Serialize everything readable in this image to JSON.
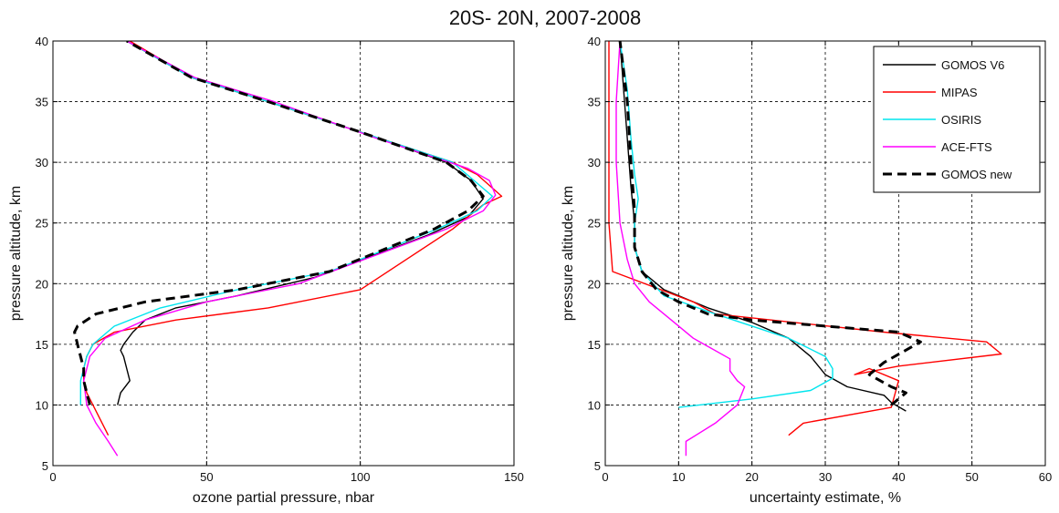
{
  "figure_title": "20S- 20N, 2007-2008",
  "colors": {
    "gomos_v6": "#000000",
    "mipas": "#ff0000",
    "osiris": "#00e5ee",
    "ace_fts": "#ff00ff",
    "gomos_new": "#000000"
  },
  "chart_data": [
    {
      "type": "line",
      "xlabel": "ozone partial pressure, nbar",
      "ylabel": "pressure altitude, km",
      "xlim": [
        0,
        150
      ],
      "ylim": [
        5,
        40
      ],
      "xticks": [
        0,
        50,
        100,
        150
      ],
      "yticks": [
        5,
        10,
        15,
        20,
        25,
        30,
        35,
        40
      ],
      "grid": true,
      "series": [
        {
          "name": "GOMOS V6",
          "color": "#000000",
          "dash": "solid",
          "width": 1.4,
          "x": [
            21,
            22,
            25,
            24,
            23,
            22,
            23,
            26,
            30,
            40,
            60,
            85,
            122,
            135,
            140,
            136,
            128,
            100,
            70,
            45,
            24
          ],
          "y": [
            10,
            11,
            12,
            13,
            14,
            14.5,
            15,
            16,
            17,
            18,
            19,
            20.5,
            24,
            25.5,
            27,
            28.5,
            30,
            32.5,
            35,
            37,
            40
          ]
        },
        {
          "name": "MIPAS",
          "color": "#ff0000",
          "dash": "solid",
          "width": 1.4,
          "x": [
            18,
            16,
            13,
            11,
            10,
            10,
            11,
            13,
            20,
            40,
            70,
            100,
            130,
            140,
            146,
            138,
            130,
            100,
            70,
            45,
            25
          ],
          "y": [
            7.5,
            8.5,
            10,
            11,
            12,
            13,
            14,
            15,
            16,
            17,
            18,
            19.5,
            24.5,
            26.5,
            27.2,
            29,
            30,
            32.5,
            35,
            37,
            40
          ]
        },
        {
          "name": "OSIRIS",
          "color": "#00e5ee",
          "dash": "solid",
          "width": 1.4,
          "x": [
            9,
            9,
            9,
            10,
            11,
            13,
            20,
            35,
            60,
            90,
            125,
            138,
            143,
            137,
            130,
            100,
            70,
            45,
            24
          ],
          "y": [
            10,
            11,
            12,
            13,
            14,
            15,
            16.5,
            18,
            19.5,
            21,
            24.5,
            26,
            27.2,
            28.5,
            30,
            32.5,
            35,
            37,
            40
          ]
        },
        {
          "name": "ACE-FTS",
          "color": "#ff00ff",
          "dash": "solid",
          "width": 1.4,
          "x": [
            21,
            18,
            14,
            11,
            10,
            12,
            17,
            30,
            50,
            80,
            128,
            140,
            144,
            142,
            135,
            105,
            72,
            46,
            24
          ],
          "y": [
            5.8,
            7,
            8.5,
            10,
            12,
            14,
            15.5,
            17,
            18.5,
            20,
            24.5,
            26,
            27.3,
            28.5,
            29.5,
            32,
            35,
            37,
            40
          ]
        },
        {
          "name": "GOMOS new",
          "color": "#000000",
          "dash": "10,6",
          "width": 3,
          "x": [
            12,
            11,
            10,
            10,
            9,
            8,
            7,
            8,
            14,
            30,
            60,
            90,
            124,
            135,
            140,
            136,
            128,
            100,
            70,
            45,
            24
          ],
          "y": [
            10,
            11,
            12,
            13,
            14,
            15,
            16,
            16.5,
            17.5,
            18.5,
            19.5,
            21,
            24.5,
            26,
            27.2,
            28.5,
            30,
            32.5,
            35,
            37,
            40
          ]
        }
      ]
    },
    {
      "type": "line",
      "xlabel": "uncertainty estimate, %",
      "ylabel": "pressure altitude, km",
      "xlim": [
        0,
        60
      ],
      "ylim": [
        5,
        40
      ],
      "xticks": [
        0,
        10,
        20,
        30,
        40,
        50,
        60
      ],
      "yticks": [
        5,
        10,
        15,
        20,
        25,
        30,
        35,
        40
      ],
      "grid": true,
      "legend": "top-right",
      "series": [
        {
          "name": "GOMOS V6",
          "color": "#000000",
          "dash": "solid",
          "width": 1.4,
          "x": [
            41,
            39,
            38,
            33,
            30,
            28,
            25,
            20,
            14,
            8,
            5,
            4,
            4,
            3.5,
            3,
            2.5,
            2
          ],
          "y": [
            9.5,
            10.2,
            10.8,
            11.5,
            12.5,
            14,
            15.5,
            16.8,
            18,
            19.5,
            21,
            23,
            25,
            28,
            32,
            36,
            40
          ]
        },
        {
          "name": "MIPAS",
          "color": "#ff0000",
          "dash": "solid",
          "width": 1.4,
          "x": [
            25,
            27,
            39,
            40,
            36,
            34,
            40,
            54,
            52,
            38,
            15,
            12,
            1,
            0.5,
            0.5,
            0.5,
            0.5
          ],
          "y": [
            7.5,
            8.5,
            9.8,
            12,
            13,
            12.5,
            13.2,
            14.2,
            15.2,
            16,
            17.5,
            18.5,
            21,
            25,
            30,
            35,
            40
          ]
        },
        {
          "name": "OSIRIS",
          "color": "#00e5ee",
          "dash": "solid",
          "width": 1.4,
          "x": [
            10,
            20,
            28,
            31,
            31,
            30,
            25,
            15,
            8,
            5,
            4,
            4,
            4.5,
            4,
            3.5,
            3,
            2
          ],
          "y": [
            9.8,
            10.5,
            11.2,
            12.2,
            13,
            14,
            15.5,
            17.5,
            19,
            21,
            23,
            25,
            27,
            29,
            32,
            36,
            40
          ]
        },
        {
          "name": "ACE-FTS",
          "color": "#ff00ff",
          "dash": "solid",
          "width": 1.4,
          "x": [
            11,
            11,
            15,
            18,
            19,
            18,
            17,
            17,
            12,
            9,
            6,
            4,
            3,
            2,
            1.5,
            1.5,
            2
          ],
          "y": [
            5.8,
            7,
            8.5,
            10,
            11.5,
            12,
            12.8,
            13.8,
            15.5,
            17,
            18.5,
            20,
            22,
            25,
            30,
            35,
            40
          ]
        },
        {
          "name": "GOMOS new",
          "color": "#000000",
          "dash": "10,6",
          "width": 3,
          "x": [
            39,
            41,
            39,
            36,
            38,
            43,
            40,
            30,
            20,
            14,
            10,
            7,
            5,
            4,
            4,
            3.5,
            3,
            2
          ],
          "y": [
            10,
            11,
            11.5,
            12.5,
            13.5,
            15.2,
            16,
            16.5,
            17,
            17.5,
            18.5,
            19.5,
            21,
            23,
            26,
            30,
            35,
            40
          ]
        }
      ]
    }
  ]
}
